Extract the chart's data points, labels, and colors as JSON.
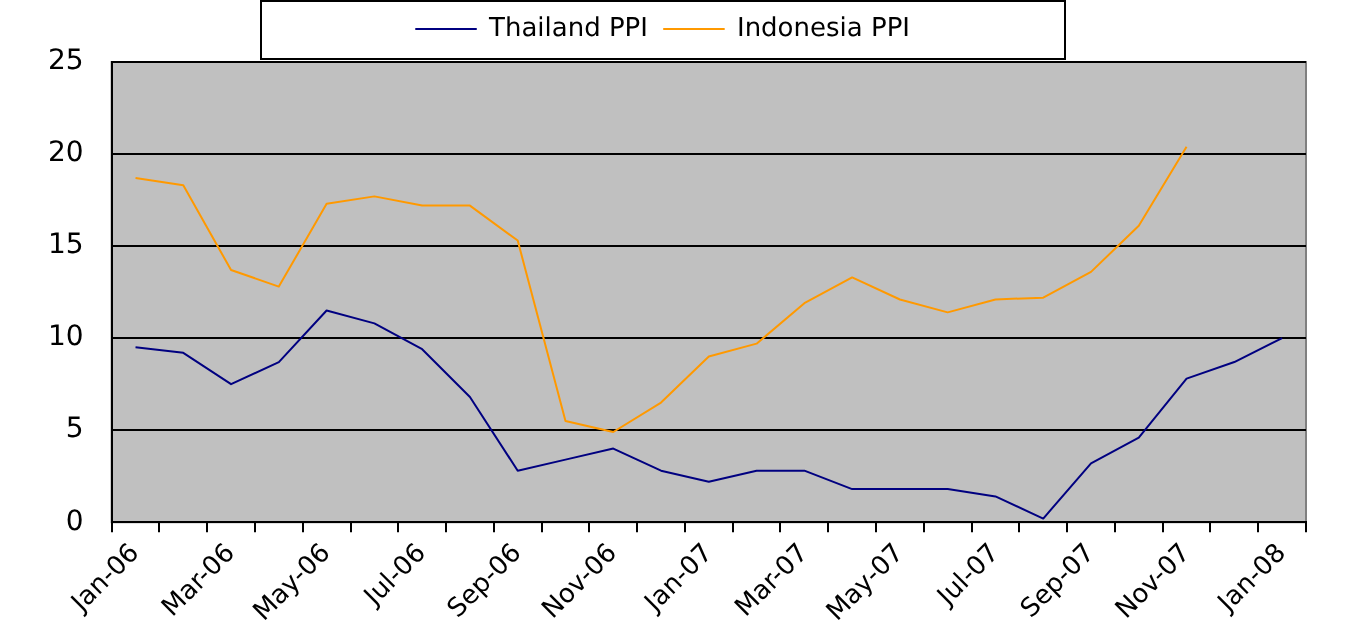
{
  "chart_data": {
    "type": "line",
    "categories": [
      "Jan-06",
      null,
      "Mar-06",
      null,
      "May-06",
      null,
      "Jul-06",
      null,
      "Sep-06",
      null,
      "Nov-06",
      null,
      "Jan-07",
      null,
      "Mar-07",
      null,
      "May-07",
      null,
      "Jul-07",
      null,
      "Sep-07",
      null,
      "Nov-07",
      null,
      "Jan-08"
    ],
    "series": [
      {
        "name": "Thailand PPI",
        "color": "#000080",
        "values": [
          9.5,
          9.2,
          7.5,
          8.7,
          11.5,
          10.8,
          9.4,
          6.8,
          2.8,
          3.4,
          4.0,
          2.8,
          2.2,
          2.8,
          2.8,
          1.8,
          1.8,
          1.8,
          1.4,
          0.2,
          3.2,
          4.6,
          7.8,
          8.7,
          10.0
        ]
      },
      {
        "name": "Indonesia PPI",
        "color": "#ff9900",
        "values": [
          18.7,
          18.3,
          13.7,
          12.8,
          17.3,
          17.7,
          17.2,
          17.2,
          15.3,
          5.5,
          4.9,
          6.5,
          9.0,
          9.7,
          11.9,
          13.3,
          12.1,
          11.4,
          12.1,
          12.2,
          13.6,
          16.1,
          20.4,
          null,
          null
        ]
      }
    ],
    "ylim": [
      0,
      25
    ],
    "yticks": [
      0,
      5,
      10,
      15,
      20,
      25
    ],
    "grid": "y",
    "legend": "top",
    "marker": "none",
    "line_style": "solid"
  }
}
